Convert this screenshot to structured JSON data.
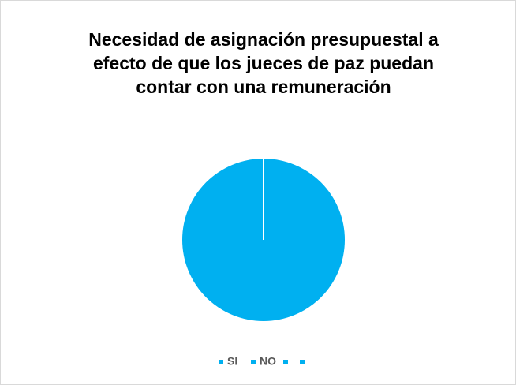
{
  "chart_data": {
    "type": "pie",
    "title": "Necesidad de asignación presupuestal a efecto de que los jueces de paz puedan contar con una remuneración",
    "categories": [
      "SI",
      "NO",
      null,
      null
    ],
    "values": [
      100,
      0,
      0,
      0
    ],
    "colors": [
      "#00b0f0",
      "#00b0f0",
      "#00b0f0",
      "#00b0f0"
    ],
    "legend": "bottom"
  }
}
